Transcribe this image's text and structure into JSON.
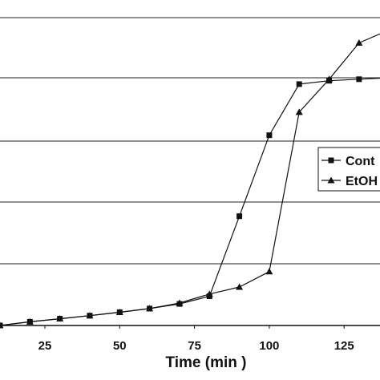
{
  "chart_data": {
    "type": "line",
    "xlabel": "Time (min )",
    "x_ticks": [
      25,
      50,
      75,
      100,
      125
    ],
    "xlim": [
      10,
      137
    ],
    "ylim": [
      0,
      1
    ],
    "grid": true,
    "legend_position": "right",
    "series": [
      {
        "name": "Cont",
        "marker": "square",
        "x": [
          10,
          20,
          30,
          40,
          50,
          60,
          70,
          80,
          90,
          100,
          110,
          120,
          130,
          140
        ],
        "y": [
          0.0,
          0.012,
          0.022,
          0.032,
          0.043,
          0.055,
          0.07,
          0.095,
          0.355,
          0.618,
          0.784,
          0.795,
          0.8,
          0.805
        ]
      },
      {
        "name": "EtOH",
        "marker": "triangle",
        "x": [
          10,
          20,
          30,
          40,
          50,
          60,
          70,
          80,
          90,
          100,
          110,
          120,
          130,
          140
        ],
        "y": [
          0.0,
          0.012,
          0.022,
          0.032,
          0.043,
          0.055,
          0.073,
          0.102,
          0.125,
          0.175,
          0.693,
          0.8,
          0.918,
          0.96
        ]
      }
    ],
    "colors": {
      "line": "#111111",
      "marker": "#111111",
      "grid": "#222222"
    }
  }
}
